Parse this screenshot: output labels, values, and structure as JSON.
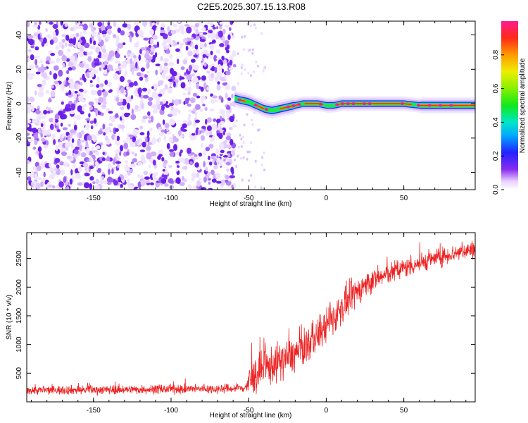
{
  "figure_title": "C2E5.2025.307.15.13.R08",
  "chart_data": [
    {
      "type": "heatmap",
      "title": "C2E5.2025.307.15.13.R08",
      "xlabel": "Height of straight line (km)",
      "ylabel": "Frequency (Hz)",
      "xlim": [
        -193,
        96
      ],
      "ylim": [
        -50,
        48
      ],
      "x_ticks": [
        -150,
        -100,
        -50,
        0,
        50
      ],
      "y_ticks": [
        -40,
        -20,
        0,
        20,
        40
      ],
      "x_tick_labels": [
        "-150",
        "-100",
        "-50",
        "0",
        "50"
      ],
      "y_tick_labels": [
        "-40",
        "-20",
        "0",
        "20",
        "40"
      ],
      "noise_region_x": [
        -193,
        -59
      ],
      "signal_region_x": [
        -59,
        96
      ],
      "signal_track": {
        "x": [
          -59,
          -55,
          -50,
          -45,
          -40,
          -35,
          -30,
          -25,
          -20,
          -15,
          -10,
          -5,
          0,
          5,
          10,
          15,
          20,
          30,
          40,
          50,
          60,
          70,
          80,
          90,
          96
        ],
        "freq": [
          3,
          2,
          1,
          -1,
          -3,
          -4,
          -3,
          -2,
          -1,
          0,
          0,
          0,
          -1,
          -1,
          0,
          0,
          0,
          0,
          0,
          0,
          -1,
          -1,
          -1,
          -1,
          -1
        ]
      },
      "colorbar": {
        "label": "Normalized spectral amplitude",
        "range": [
          0.0,
          1.0
        ],
        "ticks": [
          0.0,
          0.2,
          0.4,
          0.6,
          0.8
        ],
        "tick_labels": [
          "0.0",
          "0.2",
          "0.4",
          "0.6",
          "0.8"
        ]
      }
    },
    {
      "type": "line",
      "xlabel": "Height of straight line (km)",
      "ylabel": "SNR (10 * v/v)",
      "xlim": [
        -193,
        96
      ],
      "ylim": [
        0,
        2950
      ],
      "x_ticks": [
        -150,
        -100,
        -50,
        0,
        50
      ],
      "y_ticks": [
        500,
        1000,
        1500,
        2000,
        2500
      ],
      "x_tick_labels": [
        "-150",
        "-100",
        "-50",
        "0",
        "50"
      ],
      "y_tick_labels": [
        "500",
        "1000",
        "1500",
        "2000",
        "2500"
      ],
      "series": [
        {
          "name": "SNR",
          "color": "#ee2222",
          "x": [
            -193,
            -150,
            -100,
            -60,
            -52,
            -50,
            -45,
            -40,
            -35,
            -30,
            -25,
            -20,
            -15,
            -10,
            -5,
            0,
            5,
            10,
            15,
            20,
            25,
            30,
            40,
            50,
            60,
            70,
            80,
            90,
            96
          ],
          "mean": [
            200,
            210,
            220,
            230,
            250,
            330,
            480,
            570,
            640,
            700,
            770,
            840,
            930,
            1040,
            1170,
            1320,
            1480,
            1640,
            1790,
            1930,
            2040,
            2120,
            2230,
            2330,
            2420,
            2500,
            2570,
            2640,
            2660
          ],
          "spread": [
            70,
            70,
            70,
            70,
            80,
            250,
            300,
            300,
            300,
            300,
            290,
            280,
            280,
            280,
            280,
            270,
            270,
            260,
            250,
            220,
            200,
            180,
            170,
            160,
            150,
            140,
            140,
            140,
            140
          ]
        }
      ]
    }
  ]
}
